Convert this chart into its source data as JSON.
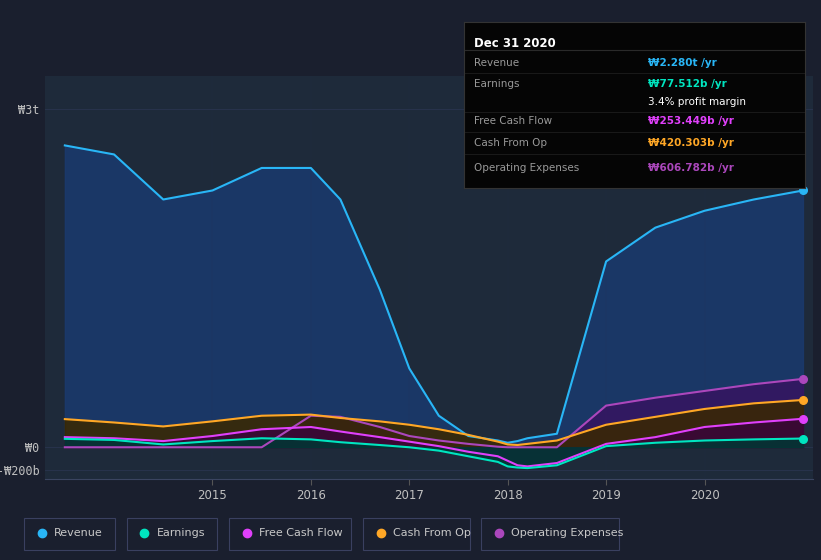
{
  "background_color": "#1a1f2e",
  "plot_bg_color": "#1e2a3a",
  "grid_color": "#2a3550",
  "title_box_bg": "#000000",
  "title_box_border": "#333333",
  "info_rows": [
    {
      "label": "Revenue",
      "value": "₩2.280t /yr",
      "value_color": "#29b6f6"
    },
    {
      "label": "Earnings",
      "value": "₩77.512b /yr",
      "value_color": "#00e5c0"
    },
    {
      "label": "",
      "value": "3.4% profit margin",
      "value_color": "#ffffff"
    },
    {
      "label": "Free Cash Flow",
      "value": "₩253.449b /yr",
      "value_color": "#e040fb"
    },
    {
      "label": "Cash From Op",
      "value": "₩420.303b /yr",
      "value_color": "#ffa726"
    },
    {
      "label": "Operating Expenses",
      "value": "₩606.782b /yr",
      "value_color": "#ab47bc"
    }
  ],
  "legend": [
    {
      "label": "Revenue",
      "color": "#29b6f6"
    },
    {
      "label": "Earnings",
      "color": "#00e5c0"
    },
    {
      "label": "Free Cash Flow",
      "color": "#e040fb"
    },
    {
      "label": "Cash From Op",
      "color": "#ffa726"
    },
    {
      "label": "Operating Expenses",
      "color": "#ab47bc"
    }
  ],
  "ytick_labels": [
    "₩3t",
    "₩0",
    "-₩200b"
  ],
  "ytick_values": [
    3000,
    0,
    -200
  ],
  "xlim": [
    2013.3,
    2021.1
  ],
  "ylim": [
    -280,
    3300
  ],
  "x_data": [
    2013.5,
    2014.0,
    2014.5,
    2015.0,
    2015.5,
    2016.0,
    2016.3,
    2016.7,
    2017.0,
    2017.3,
    2017.6,
    2017.9,
    2018.0,
    2018.1,
    2018.2,
    2018.5,
    2019.0,
    2019.5,
    2020.0,
    2020.5,
    2021.0
  ],
  "revenue": [
    2680,
    2600,
    2200,
    2280,
    2480,
    2480,
    2200,
    1400,
    700,
    280,
    100,
    60,
    40,
    55,
    80,
    120,
    1650,
    1950,
    2100,
    2200,
    2280
  ],
  "op_exp": [
    0,
    0,
    0,
    0,
    0,
    280,
    270,
    180,
    100,
    60,
    30,
    5,
    0,
    0,
    0,
    0,
    370,
    440,
    500,
    560,
    607
  ],
  "cash_op": [
    250,
    220,
    185,
    230,
    280,
    290,
    260,
    230,
    200,
    160,
    110,
    50,
    25,
    20,
    30,
    60,
    200,
    270,
    340,
    390,
    420
  ],
  "fcf": [
    90,
    80,
    55,
    100,
    160,
    180,
    140,
    90,
    50,
    10,
    -40,
    -80,
    -120,
    -160,
    -170,
    -140,
    30,
    90,
    180,
    220,
    253
  ],
  "earnings": [
    75,
    65,
    25,
    55,
    80,
    70,
    45,
    20,
    0,
    -30,
    -80,
    -130,
    -170,
    -180,
    -185,
    -160,
    10,
    40,
    60,
    70,
    77.5
  ],
  "revenue_fill": "#1a3a6e",
  "op_exp_fill": "#3a1060",
  "cash_op_fill": "#3a2800",
  "fcf_fill": "#3a0040",
  "earnings_fill": "#003835",
  "revenue_line": "#29b6f6",
  "op_exp_line": "#ab47bc",
  "cash_op_line": "#ffa726",
  "fcf_line": "#e040fb",
  "earnings_line": "#00e5c0"
}
